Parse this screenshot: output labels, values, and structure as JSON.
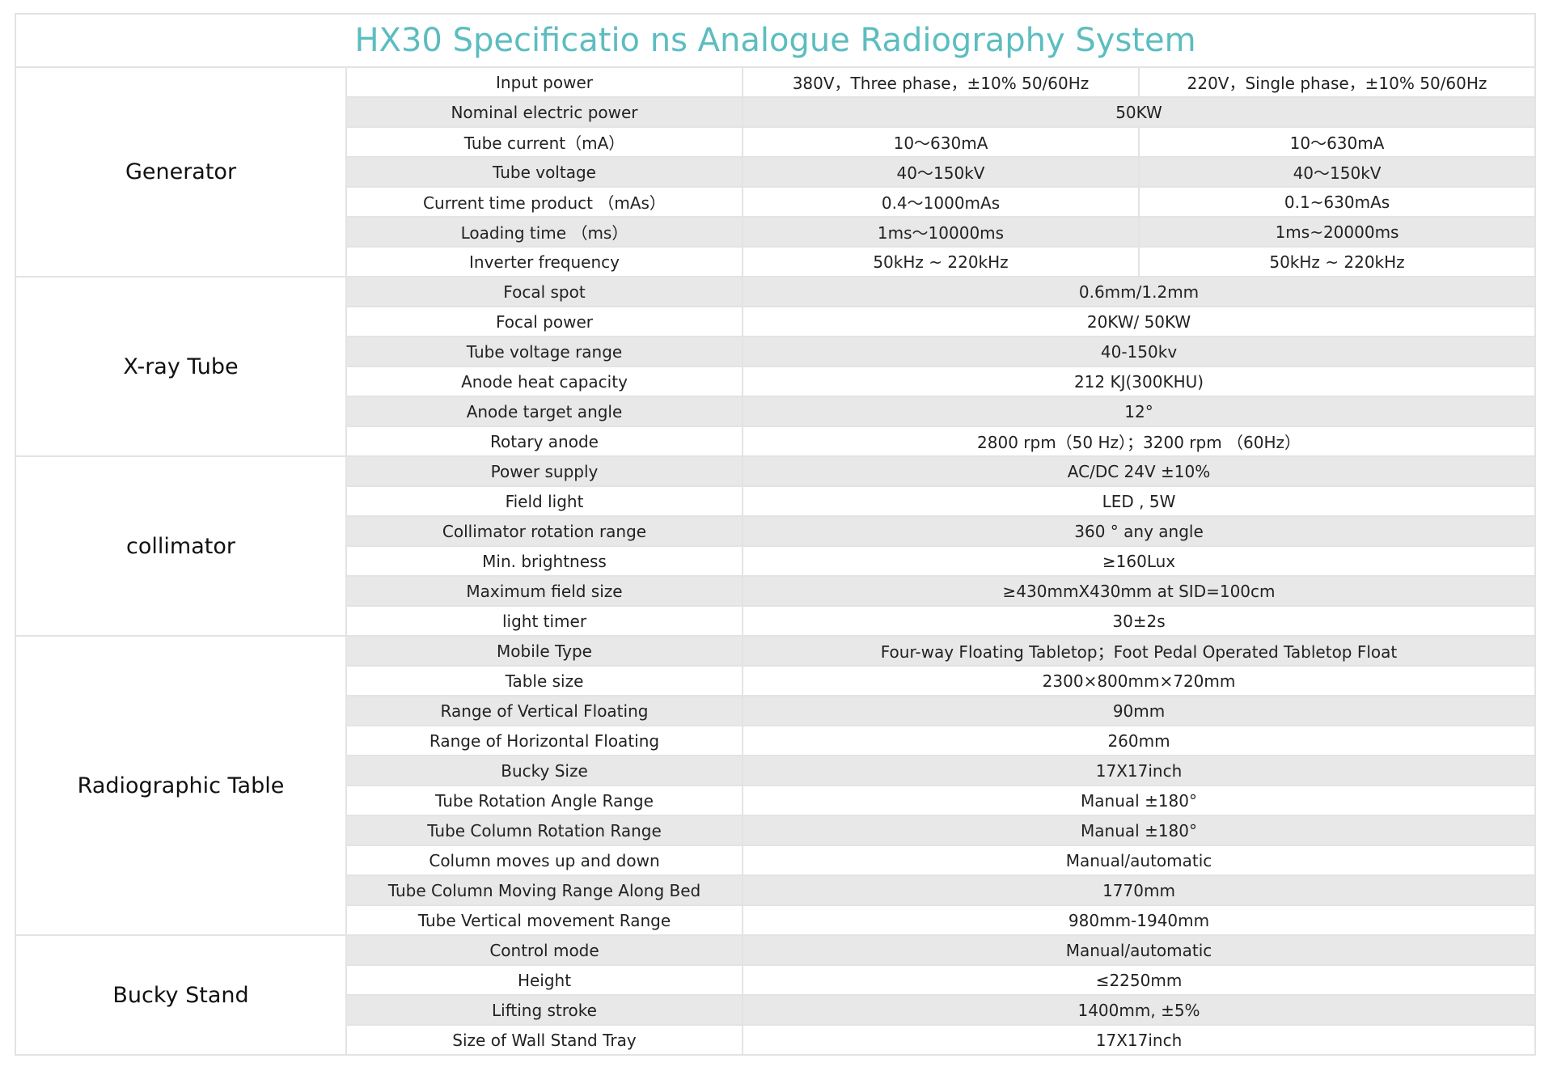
{
  "title": "HX30 Specificatio ns Analogue Radiography System",
  "sections": [
    {
      "name": "Generator",
      "rows": [
        {
          "label": "Input power",
          "values": [
            "380V，Three phase，±10% 50/60Hz",
            "220V，Single phase，±10% 50/60Hz"
          ]
        },
        {
          "label": "Nominal electric power",
          "values": [
            "50KW"
          ]
        },
        {
          "label": "Tube current（mA）",
          "values": [
            "10～630mA",
            "10～630mA"
          ]
        },
        {
          "label": "Tube voltage",
          "values": [
            "40～150kV",
            "40～150kV"
          ]
        },
        {
          "label": "Current time product （mAs）",
          "values": [
            "0.4～1000mAs",
            "0.1~630mAs"
          ]
        },
        {
          "label": "Loading time （ms）",
          "values": [
            "1ms～10000ms",
            "1ms~20000ms"
          ]
        },
        {
          "label": "Inverter frequency",
          "values": [
            "50kHz ~ 220kHz",
            "50kHz ~ 220kHz"
          ]
        }
      ]
    },
    {
      "name": "X-ray Tube",
      "rows": [
        {
          "label": "Focal spot",
          "values": [
            "0.6mm/1.2mm"
          ]
        },
        {
          "label": "Focal power",
          "values": [
            "20KW/ 50KW"
          ]
        },
        {
          "label": "Tube voltage range",
          "values": [
            "40-150kv"
          ]
        },
        {
          "label": "Anode heat capacity",
          "values": [
            "212 KJ(300KHU)"
          ]
        },
        {
          "label": "Anode target angle",
          "values": [
            "12°"
          ]
        },
        {
          "label": "Rotary anode",
          "values": [
            "2800 rpm（50 Hz）；3200 rpm （60Hz）"
          ]
        }
      ]
    },
    {
      "name": "collimator",
      "rows": [
        {
          "label": "Power supply",
          "values": [
            "AC/DC 24V ±10%"
          ]
        },
        {
          "label": "Field light",
          "values": [
            "LED , 5W"
          ]
        },
        {
          "label": "Collimator rotation range",
          "values": [
            "360 ° any angle"
          ]
        },
        {
          "label": "Min. brightness",
          "values": [
            "≥160Lux"
          ]
        },
        {
          "label": "Maximum field size",
          "values": [
            "≥430mmX430mm at SID=100cm"
          ]
        },
        {
          "label": "light timer",
          "values": [
            "30±2s"
          ]
        }
      ]
    },
    {
      "name": "Radiographic Table",
      "rows": [
        {
          "label": "Mobile Type",
          "values": [
            "Four-way Floating Tabletop；Foot Pedal Operated Tabletop Float"
          ]
        },
        {
          "label": "Table size",
          "values": [
            "2300×800mm×720mm"
          ]
        },
        {
          "label": "Range of Vertical Floating",
          "values": [
            "90mm"
          ]
        },
        {
          "label": "Range of Horizontal Floating",
          "values": [
            "260mm"
          ]
        },
        {
          "label": "Bucky Size",
          "values": [
            "17X17inch"
          ]
        },
        {
          "label": "Tube  Rotation Angle Range",
          "values": [
            "Manual ±180°"
          ]
        },
        {
          "label": "Tube Column Rotation Range",
          "values": [
            "Manual ±180°"
          ]
        },
        {
          "label": "Column moves up and down",
          "values": [
            "Manual/automatic"
          ]
        },
        {
          "label": "Tube Column Moving Range Along Bed",
          "values": [
            "1770mm"
          ]
        },
        {
          "label": "Tube Vertical movement Range",
          "values": [
            "980mm-1940mm"
          ]
        }
      ]
    },
    {
      "name": "Bucky Stand",
      "rows": [
        {
          "label": "Control mode",
          "values": [
            "Manual/automatic"
          ]
        },
        {
          "label": "Height",
          "values": [
            "≤2250mm"
          ]
        },
        {
          "label": "Lifting stroke",
          "values": [
            "1400mm, ±5%"
          ]
        },
        {
          "label": "Size of Wall Stand Tray",
          "values": [
            "17X17inch"
          ]
        }
      ]
    }
  ]
}
